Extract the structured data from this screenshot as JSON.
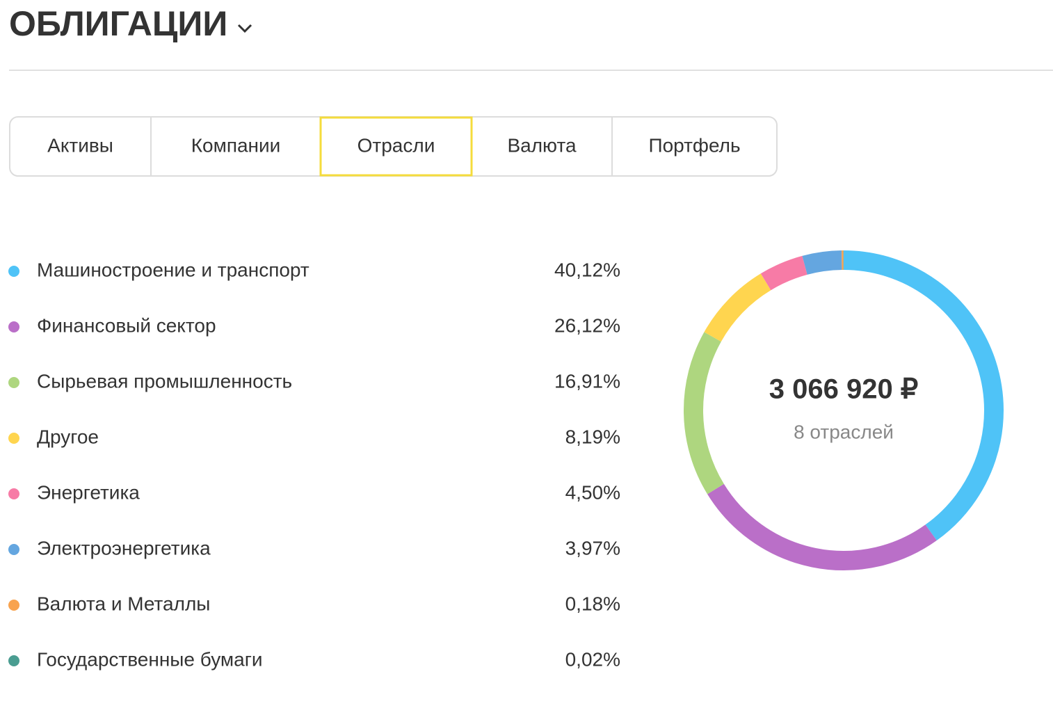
{
  "header": {
    "title": "ОБЛИГАЦИИ"
  },
  "tabs": {
    "items": [
      "Активы",
      "Компании",
      "Отрасли",
      "Валюта",
      "Портфель"
    ],
    "active_tab": "Отрасли"
  },
  "chart_data": {
    "type": "donut",
    "categories": [
      "Машиностроение и транспорт",
      "Финансовый сектор",
      "Сырьевая промышленность",
      "Другое",
      "Энергетика",
      "Электроэнергетика",
      "Валюта и Металлы",
      "Государственные бумаги"
    ],
    "values": [
      40.12,
      26.12,
      16.91,
      8.19,
      4.5,
      3.97,
      0.18,
      0.02
    ],
    "value_labels": [
      "40,12%",
      "26,12%",
      "16,91%",
      "8,19%",
      "4,50%",
      "3,97%",
      "0,18%",
      "0,02%"
    ],
    "colors": [
      "#4fc3f7",
      "#ba6fc8",
      "#aed67f",
      "#ffd54f",
      "#f77ba6",
      "#64a6e0",
      "#f8a34f",
      "#4a9d91"
    ],
    "center_label": "3 066 920 ₽",
    "center_sublabel": "8 отраслей"
  }
}
